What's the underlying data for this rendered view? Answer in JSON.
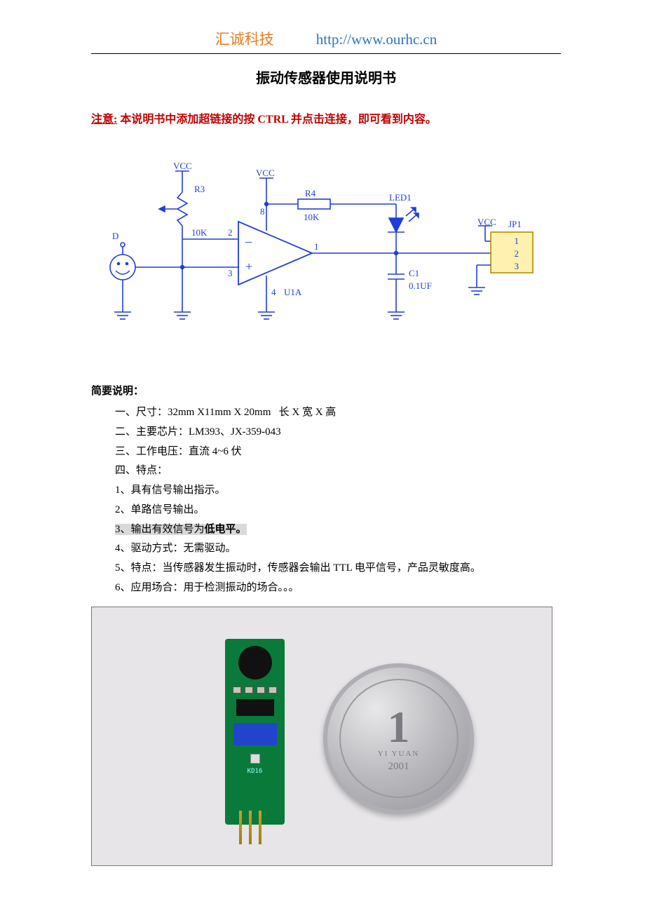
{
  "header": {
    "company": "汇诚科技",
    "url": "http://www.ourhc.cn"
  },
  "title": "振动传感器使用说明书",
  "notice": {
    "label": "注意:",
    "text": " 本说明书中添加超链接的按 CTRL 并点击连接，即可看到内容。"
  },
  "schematic": {
    "labels": {
      "D": "D",
      "VCC1": "VCC",
      "VCC2": "VCC",
      "VCC3": "VCC",
      "R3": "R3",
      "R3_val": "10K",
      "R4": "R4",
      "R4_val": "10K",
      "LED1": "LED1",
      "U1A": "U1A",
      "C1": "C1",
      "C1_val": "0.1UF",
      "JP1": "JP1",
      "jp_pins": [
        "1",
        "2",
        "3"
      ],
      "pin2": "2",
      "pin3": "3",
      "pin1": "1",
      "pin4": "4",
      "pin8": "8"
    },
    "colors": {
      "wire": "#1f3fd6",
      "text": "#1f3fd6",
      "jp_fill": "#fff2b0",
      "jp_stroke": "#b08b00"
    }
  },
  "spec": {
    "heading": "简要说明：",
    "lines": [
      {
        "t": "一、尺寸：32mm X11mm X 20mm   长 X 宽 X 高"
      },
      {
        "t": "二、主要芯片：LM393、JX-359-043"
      },
      {
        "t": "三、工作电压：直流 4~6 伏"
      },
      {
        "t": "四、特点："
      },
      {
        "t": "1、具有信号输出指示。"
      },
      {
        "t": "2、单路信号输出。"
      },
      {
        "t": "3、输出有效信号为",
        "hl": true,
        "bold_suffix": "低电平。"
      },
      {
        "t": "4、驱动方式：无需驱动。"
      },
      {
        "t": "5、特点：当传感器发生振动时，传感器会输出 TTL 电平信号，产品灵敏度高。"
      },
      {
        "t": "6、应用场合：用于检测振动的场合。。。"
      }
    ]
  },
  "photo": {
    "pcb_label": "KD16",
    "coin_value": "1",
    "coin_sub": "YI YUAN",
    "coin_year": "2001"
  }
}
